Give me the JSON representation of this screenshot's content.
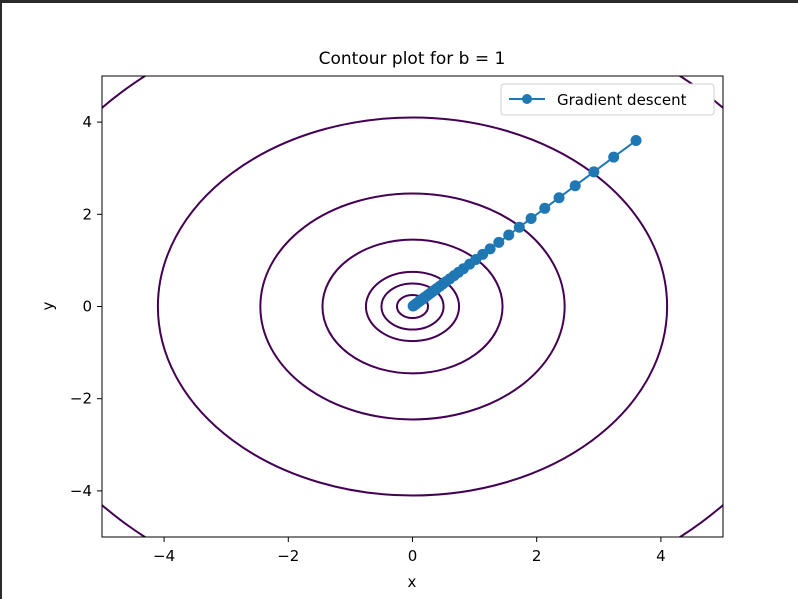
{
  "chart_data": {
    "type": "contour",
    "title": "Contour plot for b = 1",
    "xlabel": "x",
    "ylabel": "y",
    "xlim": [
      -5,
      5
    ],
    "ylim": [
      -5,
      5
    ],
    "xticks": [
      -4,
      -2,
      0,
      2,
      4
    ],
    "yticks": [
      -4,
      -2,
      0,
      2,
      4
    ],
    "xtick_labels": [
      "−4",
      "−2",
      "0",
      "2",
      "4"
    ],
    "ytick_labels": [
      "−4",
      "−2",
      "0",
      "2",
      "4"
    ],
    "grid": false,
    "legend_position": "top-right",
    "contour_color": "#440154",
    "contour_levels": [
      {
        "rx": 0.25,
        "ry": 0.25
      },
      {
        "rx": 0.5,
        "ry": 0.5
      },
      {
        "rx": 0.75,
        "ry": 0.75
      },
      {
        "rx": 1.45,
        "ry": 1.45
      },
      {
        "rx": 2.45,
        "ry": 2.45
      },
      {
        "rx": 4.1,
        "ry": 4.1
      },
      {
        "rx": 6.6,
        "ry": 6.6
      }
    ],
    "series": [
      {
        "name": "Gradient descent",
        "color": "#1f77b4",
        "points": [
          [
            3.6,
            3.6
          ],
          [
            3.24,
            3.24
          ],
          [
            2.92,
            2.92
          ],
          [
            2.62,
            2.62
          ],
          [
            2.36,
            2.36
          ],
          [
            2.13,
            2.13
          ],
          [
            1.91,
            1.91
          ],
          [
            1.72,
            1.72
          ],
          [
            1.55,
            1.55
          ],
          [
            1.39,
            1.39
          ],
          [
            1.25,
            1.25
          ],
          [
            1.13,
            1.13
          ],
          [
            1.02,
            1.02
          ],
          [
            0.92,
            0.92
          ],
          [
            0.82,
            0.82
          ],
          [
            0.74,
            0.74
          ],
          [
            0.67,
            0.67
          ],
          [
            0.6,
            0.6
          ],
          [
            0.54,
            0.54
          ],
          [
            0.49,
            0.49
          ],
          [
            0.44,
            0.44
          ],
          [
            0.39,
            0.39
          ],
          [
            0.35,
            0.35
          ],
          [
            0.32,
            0.32
          ],
          [
            0.29,
            0.29
          ],
          [
            0.26,
            0.26
          ],
          [
            0.23,
            0.23
          ],
          [
            0.21,
            0.21
          ],
          [
            0.19,
            0.19
          ],
          [
            0.17,
            0.17
          ],
          [
            0.15,
            0.15
          ],
          [
            0.12,
            0.12
          ],
          [
            0.1,
            0.1
          ],
          [
            0.07,
            0.07
          ],
          [
            0.05,
            0.05
          ],
          [
            0.03,
            0.03
          ],
          [
            0.01,
            0.01
          ]
        ]
      }
    ]
  }
}
